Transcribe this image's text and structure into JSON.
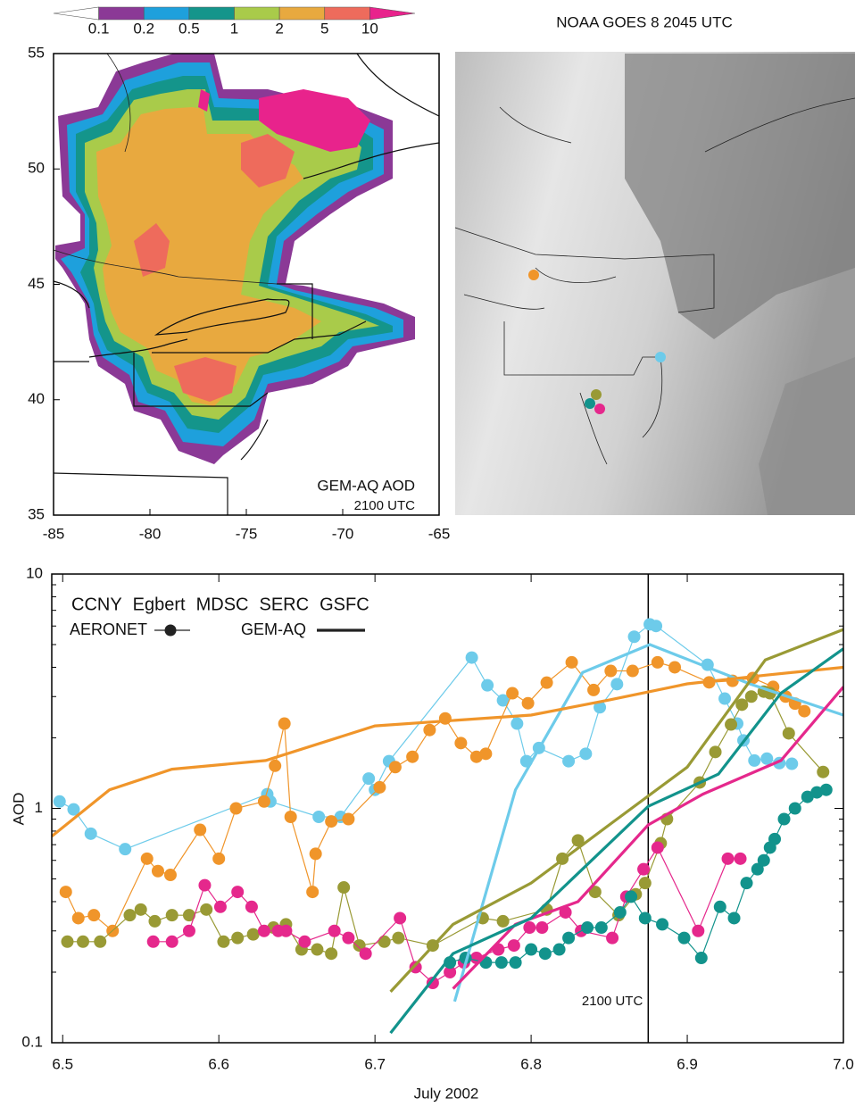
{
  "chart_data": [
    {
      "type": "map",
      "title": "GEM-AQ AOD",
      "subtitle": "2100 UTC",
      "xlim": [
        -85,
        -65
      ],
      "xticks": [
        -85,
        -80,
        -75,
        -70,
        -65
      ],
      "ylim": [
        35,
        55
      ],
      "yticks": [
        35,
        40,
        45,
        50,
        55
      ],
      "colorbar": {
        "ticks": [
          0.1,
          0.2,
          0.5,
          1,
          2,
          5,
          10
        ],
        "colors": [
          "#ffffff",
          "#8b3996",
          "#1ea0dc",
          "#14958b",
          "#a9cb4a",
          "#e8a93f",
          "#ee6b5c",
          "#e8238c"
        ]
      }
    },
    {
      "type": "image",
      "title": "NOAA GOES 8 2045 UTC"
    },
    {
      "type": "line",
      "log_y": true,
      "ylabel": "AOD",
      "xlabel": "July 2002",
      "xlim": [
        6.493,
        7.0
      ],
      "xticks": [
        6.5,
        6.6,
        6.7,
        6.8,
        6.9,
        {
          "value": 7,
          "label": "7.0"
        }
      ],
      "ylim": [
        0.1,
        10
      ],
      "yticks": [
        0.1,
        1,
        10
      ],
      "yminor_ticks": [
        0.2,
        0.3,
        0.4,
        0.5,
        0.6,
        0.7,
        0.8,
        0.9,
        2,
        3,
        4,
        5,
        6,
        7,
        8,
        9
      ],
      "annotation": {
        "text": "2100 UTC",
        "x": 6.875
      },
      "legend_styles": [
        "AERONET",
        "GEM-AQ"
      ],
      "sites": [
        {
          "name": "CCNY",
          "color": "#6dcbea",
          "aeronet": {
            "x": [
              6.498,
              6.507,
              6.518,
              6.54,
              6.631,
              6.633,
              6.664,
              6.678,
              6.696,
              6.7,
              6.709,
              6.762,
              6.772,
              6.782,
              6.791,
              6.797,
              6.805,
              6.824,
              6.835,
              6.844,
              6.855,
              6.866,
              6.876,
              6.88,
              6.913,
              6.924,
              6.932,
              6.936,
              6.943,
              6.951,
              6.959,
              6.967
            ],
            "values": [
              1.07,
              0.99,
              0.78,
              0.67,
              1.15,
              1.07,
              0.92,
              0.92,
              1.34,
              1.2,
              1.59,
              4.4,
              3.35,
              2.89,
              2.3,
              1.59,
              1.81,
              1.59,
              1.71,
              2.7,
              3.39,
              5.4,
              6.1,
              6.0,
              4.1,
              2.94,
              2.3,
              1.95,
              1.6,
              1.63,
              1.56,
              1.55
            ]
          },
          "model": {
            "x": [
              6.751,
              6.79,
              6.833,
              6.876,
              6.94,
              7.0
            ],
            "values": [
              0.15,
              1.2,
              3.8,
              5.0,
              3.4,
              2.5
            ]
          }
        },
        {
          "name": "Egbert",
          "color": "#f0952a",
          "aeronet": {
            "x": [
              6.502,
              6.51,
              6.52,
              6.532,
              6.554,
              6.561,
              6.569,
              6.588,
              6.6,
              6.611,
              6.629,
              6.636,
              6.642,
              6.646,
              6.66,
              6.662,
              6.672,
              6.683,
              6.703,
              6.713,
              6.724,
              6.735,
              6.745,
              6.755,
              6.765,
              6.771,
              6.788,
              6.798,
              6.81,
              6.826,
              6.84,
              6.851,
              6.865,
              6.881,
              6.892,
              6.914,
              6.929,
              6.942,
              6.955,
              6.963,
              6.969,
              6.975
            ],
            "values": [
              0.44,
              0.34,
              0.35,
              0.3,
              0.61,
              0.54,
              0.52,
              0.81,
              0.61,
              1.0,
              1.07,
              1.52,
              2.3,
              0.92,
              0.44,
              0.64,
              0.88,
              0.9,
              1.23,
              1.5,
              1.66,
              2.16,
              2.42,
              1.9,
              1.66,
              1.71,
              3.1,
              2.81,
              3.44,
              4.2,
              3.2,
              3.86,
              3.86,
              4.2,
              4.0,
              3.45,
              3.5,
              3.6,
              3.3,
              3.0,
              2.8,
              2.6
            ]
          },
          "model": {
            "x": [
              6.493,
              6.53,
              6.57,
              6.63,
              6.7,
              6.8,
              6.85,
              6.9,
              6.95,
              7.0
            ],
            "values": [
              0.76,
              1.2,
              1.47,
              1.6,
              2.25,
              2.5,
              2.9,
              3.4,
              3.7,
              4.0
            ]
          }
        },
        {
          "name": "MDSC",
          "color": "#999a35",
          "aeronet": {
            "x": [
              6.503,
              6.513,
              6.524,
              6.543,
              6.55,
              6.559,
              6.57,
              6.581,
              6.592,
              6.603,
              6.612,
              6.622,
              6.635,
              6.643,
              6.653,
              6.663,
              6.672,
              6.68,
              6.69,
              6.706,
              6.715,
              6.737,
              6.769,
              6.782,
              6.81,
              6.82,
              6.83,
              6.841,
              6.856,
              6.867,
              6.873,
              6.883,
              6.887,
              6.908,
              6.918,
              6.928,
              6.935,
              6.941,
              6.949,
              6.953,
              6.965,
              6.987
            ],
            "values": [
              0.27,
              0.27,
              0.27,
              0.35,
              0.37,
              0.33,
              0.35,
              0.35,
              0.37,
              0.27,
              0.28,
              0.29,
              0.31,
              0.32,
              0.25,
              0.25,
              0.24,
              0.46,
              0.26,
              0.27,
              0.28,
              0.26,
              0.34,
              0.33,
              0.37,
              0.61,
              0.73,
              0.44,
              0.35,
              0.43,
              0.48,
              0.71,
              0.9,
              1.29,
              1.74,
              2.28,
              2.77,
              3.0,
              3.15,
              3.1,
              2.09,
              1.43
            ]
          },
          "model": {
            "x": [
              6.71,
              6.75,
              6.8,
              6.85,
              6.9,
              6.95,
              7.0
            ],
            "values": [
              0.165,
              0.32,
              0.48,
              0.85,
              1.5,
              4.3,
              5.8
            ]
          }
        },
        {
          "name": "SERC",
          "color": "#e5288c",
          "aeronet": {
            "x": [
              6.558,
              6.57,
              6.581,
              6.591,
              6.601,
              6.612,
              6.621,
              6.629,
              6.638,
              6.643,
              6.655,
              6.674,
              6.683,
              6.694,
              6.716,
              6.726,
              6.737,
              6.748,
              6.757,
              6.765,
              6.779,
              6.789,
              6.799,
              6.807,
              6.822,
              6.832,
              6.852,
              6.861,
              6.872,
              6.881,
              6.907,
              6.926,
              6.934
            ],
            "values": [
              0.27,
              0.27,
              0.3,
              0.47,
              0.38,
              0.44,
              0.38,
              0.3,
              0.3,
              0.3,
              0.27,
              0.3,
              0.28,
              0.24,
              0.34,
              0.21,
              0.18,
              0.2,
              0.22,
              0.23,
              0.25,
              0.26,
              0.31,
              0.31,
              0.36,
              0.3,
              0.28,
              0.42,
              0.55,
              0.68,
              0.3,
              0.61,
              0.61
            ]
          },
          "model": {
            "x": [
              6.75,
              6.79,
              6.83,
              6.875,
              6.91,
              6.96,
              7.0
            ],
            "values": [
              0.17,
              0.32,
              0.4,
              0.85,
              1.15,
              1.6,
              3.3
            ]
          }
        },
        {
          "name": "GSFC",
          "color": "#12938c",
          "aeronet": {
            "x": [
              6.748,
              6.758,
              6.771,
              6.781,
              6.79,
              6.8,
              6.809,
              6.818,
              6.824,
              6.836,
              6.845,
              6.857,
              6.864,
              6.873,
              6.884,
              6.898,
              6.909,
              6.921,
              6.93,
              6.938,
              6.945,
              6.949,
              6.953,
              6.956,
              6.962,
              6.969,
              6.977,
              6.983,
              6.989
            ],
            "values": [
              0.22,
              0.23,
              0.22,
              0.22,
              0.22,
              0.25,
              0.24,
              0.25,
              0.28,
              0.31,
              0.31,
              0.36,
              0.42,
              0.34,
              0.32,
              0.28,
              0.23,
              0.38,
              0.34,
              0.48,
              0.55,
              0.6,
              0.68,
              0.74,
              0.9,
              1.0,
              1.12,
              1.17,
              1.2
            ]
          },
          "model": {
            "x": [
              6.71,
              6.75,
              6.8,
              6.875,
              6.92,
              6.96,
              7.0
            ],
            "values": [
              0.11,
              0.24,
              0.34,
              1.02,
              1.4,
              3.1,
              4.8
            ]
          }
        }
      ]
    }
  ]
}
